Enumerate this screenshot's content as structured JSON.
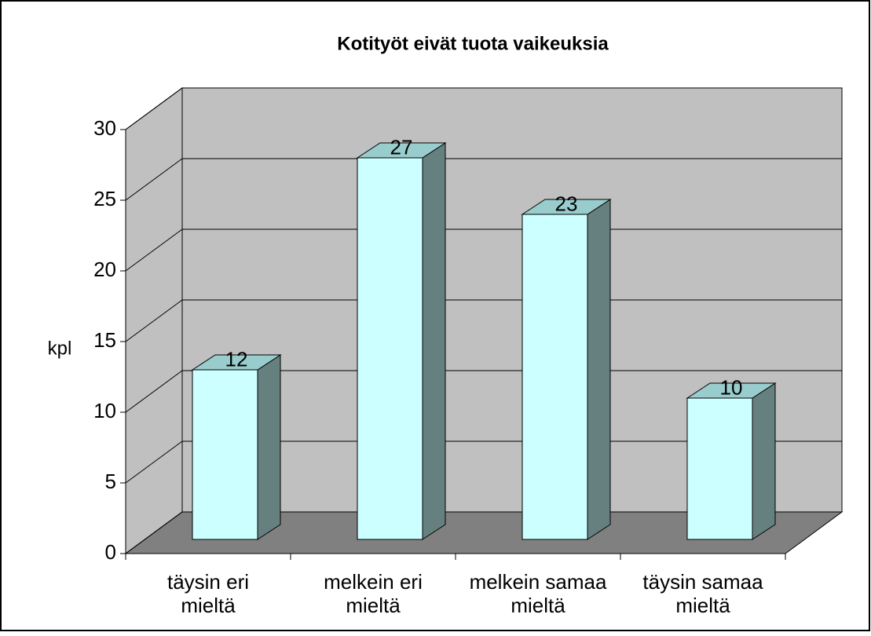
{
  "chart_data": {
    "type": "bar3d",
    "title": "Kotityöt eivät tuota vaikeuksia",
    "y_label": "kpl",
    "categories": [
      "täysin eri\nmieltä",
      "melkein eri\nmieltä",
      "melkein samaa\nmieltä",
      "täysin samaa\nmieltä"
    ],
    "values": [
      12,
      27,
      23,
      10
    ],
    "color": "#ccffff",
    "top_color": "#99cccc",
    "side_color": "#668080",
    "ylim": [
      0,
      30
    ],
    "yticks": [
      0,
      5,
      10,
      15,
      20,
      25,
      30
    ],
    "grid": true
  }
}
